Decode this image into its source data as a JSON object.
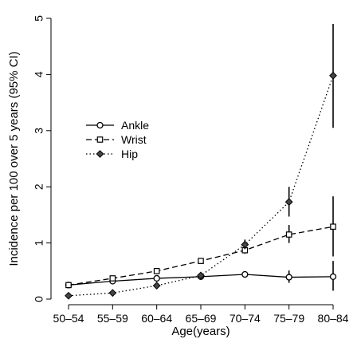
{
  "chart_data": {
    "type": "line",
    "xlabel": "Age(years)",
    "ylabel": "Incidence per 100 over 5 years (95% CI)",
    "categories": [
      "50–54",
      "55–59",
      "60–64",
      "65–69",
      "70–74",
      "75–79",
      "80–84"
    ],
    "ylim": [
      0,
      5
    ],
    "yticks": [
      0,
      1,
      2,
      3,
      4,
      5
    ],
    "grid": false,
    "legend_position": "left-middle",
    "series": [
      {
        "name": "Ankle",
        "line_style": "solid",
        "marker": "circle",
        "values": [
          0.25,
          0.32,
          0.37,
          0.4,
          0.44,
          0.39,
          0.4
        ],
        "ci_lower": [
          0.23,
          0.28,
          0.33,
          0.36,
          0.41,
          0.29,
          0.15
        ],
        "ci_upper": [
          0.27,
          0.36,
          0.41,
          0.44,
          0.47,
          0.51,
          0.68
        ]
      },
      {
        "name": "Wrist",
        "line_style": "dashed",
        "marker": "square",
        "values": [
          0.25,
          0.37,
          0.5,
          0.68,
          0.87,
          1.15,
          1.29
        ],
        "ci_lower": [
          0.23,
          0.34,
          0.46,
          0.64,
          0.81,
          1.0,
          0.76
        ],
        "ci_upper": [
          0.27,
          0.4,
          0.54,
          0.72,
          0.93,
          1.32,
          1.83
        ]
      },
      {
        "name": "Hip",
        "line_style": "dotted",
        "marker": "diamond",
        "values": [
          0.06,
          0.11,
          0.24,
          0.42,
          0.97,
          1.73,
          3.98
        ],
        "ci_lower": [
          0.04,
          0.08,
          0.2,
          0.37,
          0.89,
          1.47,
          3.05
        ],
        "ci_upper": [
          0.08,
          0.14,
          0.28,
          0.47,
          1.06,
          2.0,
          4.9
        ]
      }
    ]
  }
}
